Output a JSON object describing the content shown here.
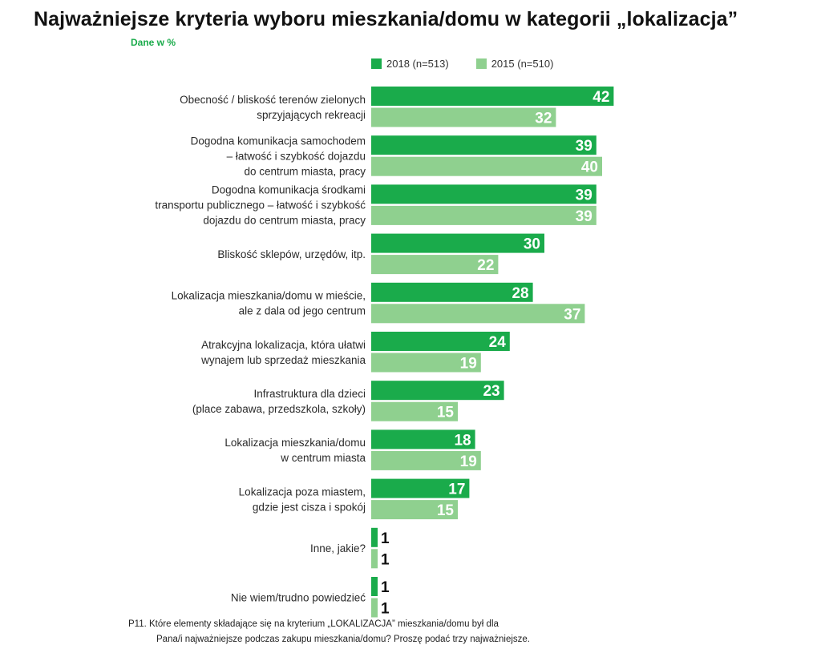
{
  "title": "Najważniejsze kryteria wyboru mieszkania/domu w kategorii „lokalizacja”",
  "subtitle": "Dane w %",
  "colors": {
    "series_2018": "#1aab4b",
    "series_2015": "#8fd08f",
    "subtitle": "#1aab4b"
  },
  "footnote": {
    "line1": "P11. Które elementy składające się na kryterium „LOKALIZACJA” mieszkania/domu był dla",
    "line2": "Pana/i najważniejsze podczas zakupu mieszkania/domu? Proszę podać trzy najważniejsze."
  },
  "chart_data": {
    "type": "bar",
    "orientation": "horizontal",
    "title": "Najważniejsze kryteria wyboru mieszkania/domu w kategorii „lokalizacja”",
    "subtitle": "Dane w %",
    "legend_position": "top",
    "grid": false,
    "xlim": [
      0,
      42
    ],
    "categories": [
      [
        "Obecność / bliskość terenów zielonych",
        "sprzyjających rekreacji"
      ],
      [
        "Dogodna komunikacja samochodem",
        "– łatwość i szybkość dojazdu",
        "do centrum miasta, pracy"
      ],
      [
        "Dogodna komunikacja środkami",
        "transportu publicznego – łatwość i szybkość",
        "dojazdu do centrum miasta, pracy"
      ],
      [
        "Bliskość sklepów, urzędów, itp."
      ],
      [
        "Lokalizacja mieszkania/domu w mieście,",
        "ale z dala od jego centrum"
      ],
      [
        "Atrakcyjna lokalizacja, która ułatwi",
        "wynajem lub sprzedaż mieszkania"
      ],
      [
        "Infrastruktura dla dzieci",
        "(place zabawa, przedszkola, szkoły)"
      ],
      [
        "Lokalizacja mieszkania/domu",
        "w centrum miasta"
      ],
      [
        "Lokalizacja poza miastem,",
        "gdzie jest cisza i spokój"
      ],
      [
        "Inne, jakie?"
      ],
      [
        "Nie wiem/trudno powiedzieć"
      ]
    ],
    "series": [
      {
        "name": "2018 (n=513)",
        "values": [
          42,
          39,
          39,
          30,
          28,
          24,
          23,
          18,
          17,
          1,
          1
        ]
      },
      {
        "name": "2015 (n=510)",
        "values": [
          32,
          40,
          39,
          22,
          37,
          19,
          15,
          19,
          15,
          1,
          1
        ]
      }
    ]
  }
}
